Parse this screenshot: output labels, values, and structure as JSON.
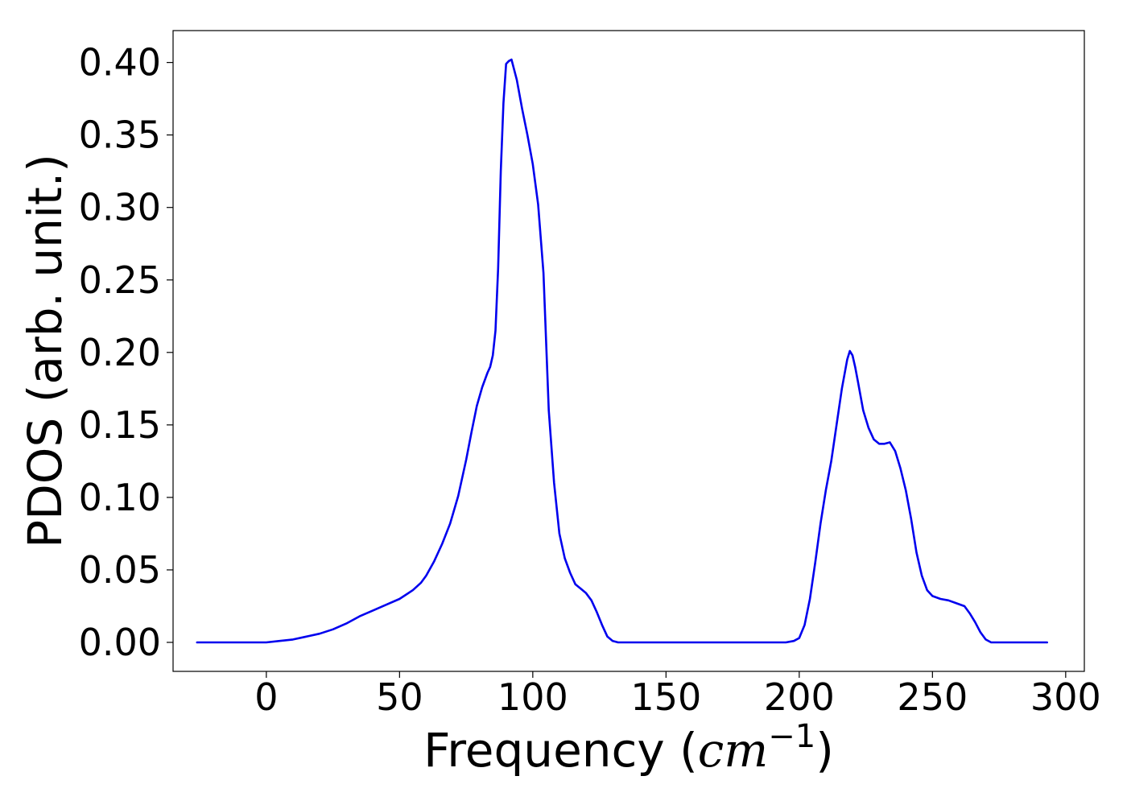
{
  "chart_data": {
    "type": "line",
    "title": "",
    "xlabel": {
      "prefix": "Frequency (",
      "unit_base": "cm",
      "unit_exp": "−1",
      "suffix": ")"
    },
    "ylabel": "PDOS (arb. unit.)",
    "xlim": [
      -35,
      307
    ],
    "ylim": [
      -0.02,
      0.422
    ],
    "xticks": [
      0,
      50,
      100,
      150,
      200,
      250,
      300
    ],
    "xtick_labels": [
      "0",
      "50",
      "100",
      "150",
      "200",
      "250",
      "300"
    ],
    "yticks": [
      0.0,
      0.05,
      0.1,
      0.15,
      0.2,
      0.25,
      0.3,
      0.35,
      0.4
    ],
    "ytick_labels": [
      "0.00",
      "0.05",
      "0.10",
      "0.15",
      "0.20",
      "0.25",
      "0.30",
      "0.35",
      "0.40"
    ],
    "grid": false,
    "legend": "none",
    "series": [
      {
        "color": "#0000ee",
        "x": [
          -26,
          -20,
          -10,
          0,
          5,
          10,
          15,
          20,
          25,
          30,
          35,
          40,
          45,
          50,
          55,
          58,
          60,
          63,
          66,
          69,
          72,
          75,
          77,
          79,
          81,
          83,
          84,
          85,
          86,
          87,
          88,
          89,
          90,
          91,
          92,
          93,
          94,
          96,
          98,
          100,
          102,
          104,
          106,
          108,
          110,
          112,
          114,
          116,
          118,
          120,
          122,
          124,
          126,
          128,
          130,
          132,
          135,
          140,
          150,
          160,
          170,
          180,
          190,
          195,
          198,
          200,
          202,
          204,
          206,
          208,
          210,
          212,
          214,
          216,
          218,
          219,
          220,
          221,
          222,
          224,
          226,
          228,
          230,
          232,
          234,
          236,
          238,
          240,
          242,
          244,
          246,
          248,
          250,
          253,
          256,
          259,
          262,
          264,
          266,
          268,
          270,
          272,
          275,
          280,
          290,
          293
        ],
        "y": [
          0.0,
          0.0,
          0.0,
          0.0,
          0.001,
          0.002,
          0.004,
          0.006,
          0.009,
          0.013,
          0.018,
          0.022,
          0.026,
          0.03,
          0.036,
          0.041,
          0.046,
          0.056,
          0.068,
          0.082,
          0.101,
          0.126,
          0.145,
          0.163,
          0.176,
          0.186,
          0.19,
          0.198,
          0.215,
          0.258,
          0.325,
          0.372,
          0.399,
          0.401,
          0.402,
          0.395,
          0.388,
          0.368,
          0.35,
          0.33,
          0.302,
          0.255,
          0.16,
          0.11,
          0.075,
          0.058,
          0.048,
          0.04,
          0.037,
          0.034,
          0.029,
          0.021,
          0.012,
          0.004,
          0.001,
          0.0,
          0.0,
          0.0,
          0.0,
          0.0,
          0.0,
          0.0,
          0.0,
          0.0,
          0.001,
          0.003,
          0.012,
          0.03,
          0.055,
          0.082,
          0.105,
          0.125,
          0.15,
          0.175,
          0.195,
          0.201,
          0.198,
          0.19,
          0.18,
          0.16,
          0.148,
          0.14,
          0.137,
          0.137,
          0.138,
          0.132,
          0.12,
          0.105,
          0.085,
          0.062,
          0.046,
          0.036,
          0.032,
          0.03,
          0.029,
          0.027,
          0.025,
          0.02,
          0.014,
          0.007,
          0.002,
          0.0,
          0.0,
          0.0,
          0.0,
          0.0
        ]
      }
    ]
  }
}
